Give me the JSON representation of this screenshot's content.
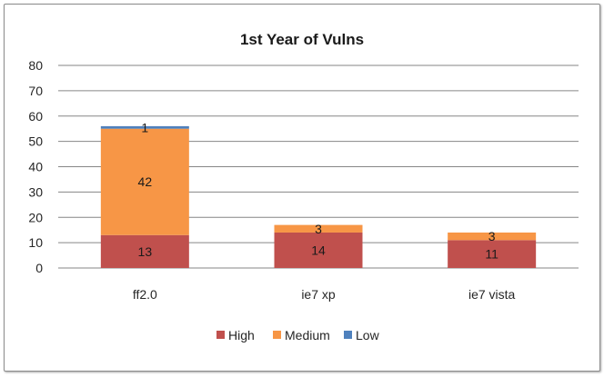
{
  "chart_data": {
    "type": "bar",
    "stacked": true,
    "title": "1st Year of Vulns",
    "xlabel": "",
    "ylabel": "",
    "categories": [
      "ff2.0",
      "ie7 xp",
      "ie7 vista"
    ],
    "series": [
      {
        "name": "High",
        "values": [
          13,
          14,
          11
        ],
        "color": "#c0504d"
      },
      {
        "name": "Medium",
        "values": [
          42,
          3,
          3
        ],
        "color": "#f79646"
      },
      {
        "name": "Low",
        "values": [
          1,
          0,
          0
        ],
        "color": "#4f81bd"
      }
    ],
    "ylim": [
      0,
      80
    ],
    "yticks": [
      0,
      10,
      20,
      30,
      40,
      50,
      60,
      70,
      80
    ],
    "grid": true,
    "legend": "bottom"
  }
}
